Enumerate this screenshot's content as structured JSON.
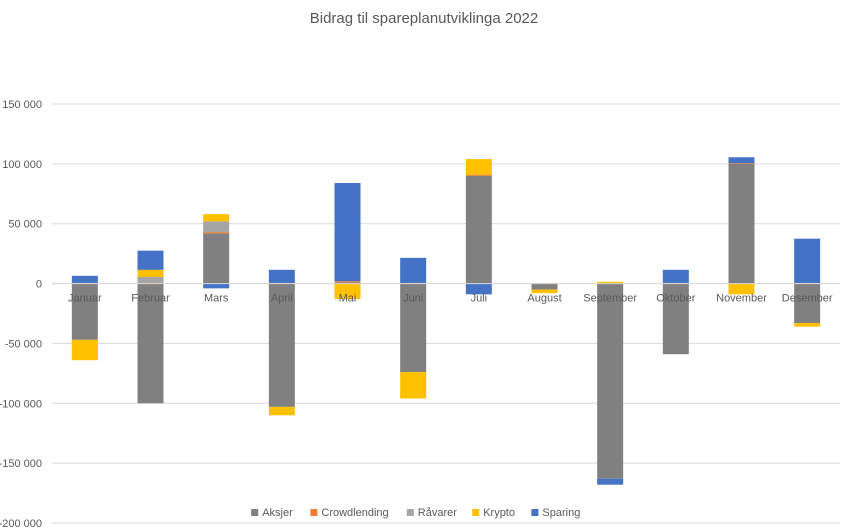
{
  "chart_data": {
    "type": "bar",
    "stacked": true,
    "title": "Bidrag til spareplanutviklinga 2022",
    "xlabel": "",
    "ylabel": "",
    "ylim": [
      -200000,
      150000
    ],
    "yticks": [
      150000,
      100000,
      50000,
      0,
      -50000,
      -100000,
      -150000,
      -200000
    ],
    "ytick_labels": [
      "150 000",
      "100 000",
      "50 000",
      "0",
      "-50 000",
      "-100 000",
      "-150 000",
      "-200 000"
    ],
    "grid": true,
    "legend_position": "bottom",
    "categories": [
      "Januar",
      "Februar",
      "Mars",
      "April",
      "Mai",
      "Juni",
      "Juli",
      "August",
      "September",
      "Oktober",
      "November",
      "Desember"
    ],
    "series": [
      {
        "name": "Aksjer",
        "color": "#808080",
        "values": [
          -47000,
          -100000,
          42000,
          -103000,
          1000,
          -74000,
          90000,
          -5000,
          -163000,
          -59000,
          100000,
          -33000
        ]
      },
      {
        "name": "Crowdlending",
        "color": "#ED7D31",
        "values": [
          500,
          500,
          1000,
          500,
          1000,
          500,
          1000,
          500,
          500,
          500,
          500,
          500
        ]
      },
      {
        "name": "Råvarer",
        "color": "#A5A5A5",
        "values": [
          0,
          5000,
          9000,
          0,
          0,
          0,
          0,
          0,
          0,
          0,
          0,
          0
        ]
      },
      {
        "name": "Krypto",
        "color": "#FFC000",
        "values": [
          -17000,
          6000,
          6000,
          -7000,
          -13000,
          -22000,
          13000,
          -3000,
          1000,
          0,
          -9000,
          -3000
        ]
      },
      {
        "name": "Sparing",
        "color": "#4472C4",
        "values": [
          6000,
          16000,
          -4000,
          11000,
          82000,
          21000,
          -9000,
          0,
          -5000,
          11000,
          5000,
          37000
        ]
      }
    ]
  }
}
